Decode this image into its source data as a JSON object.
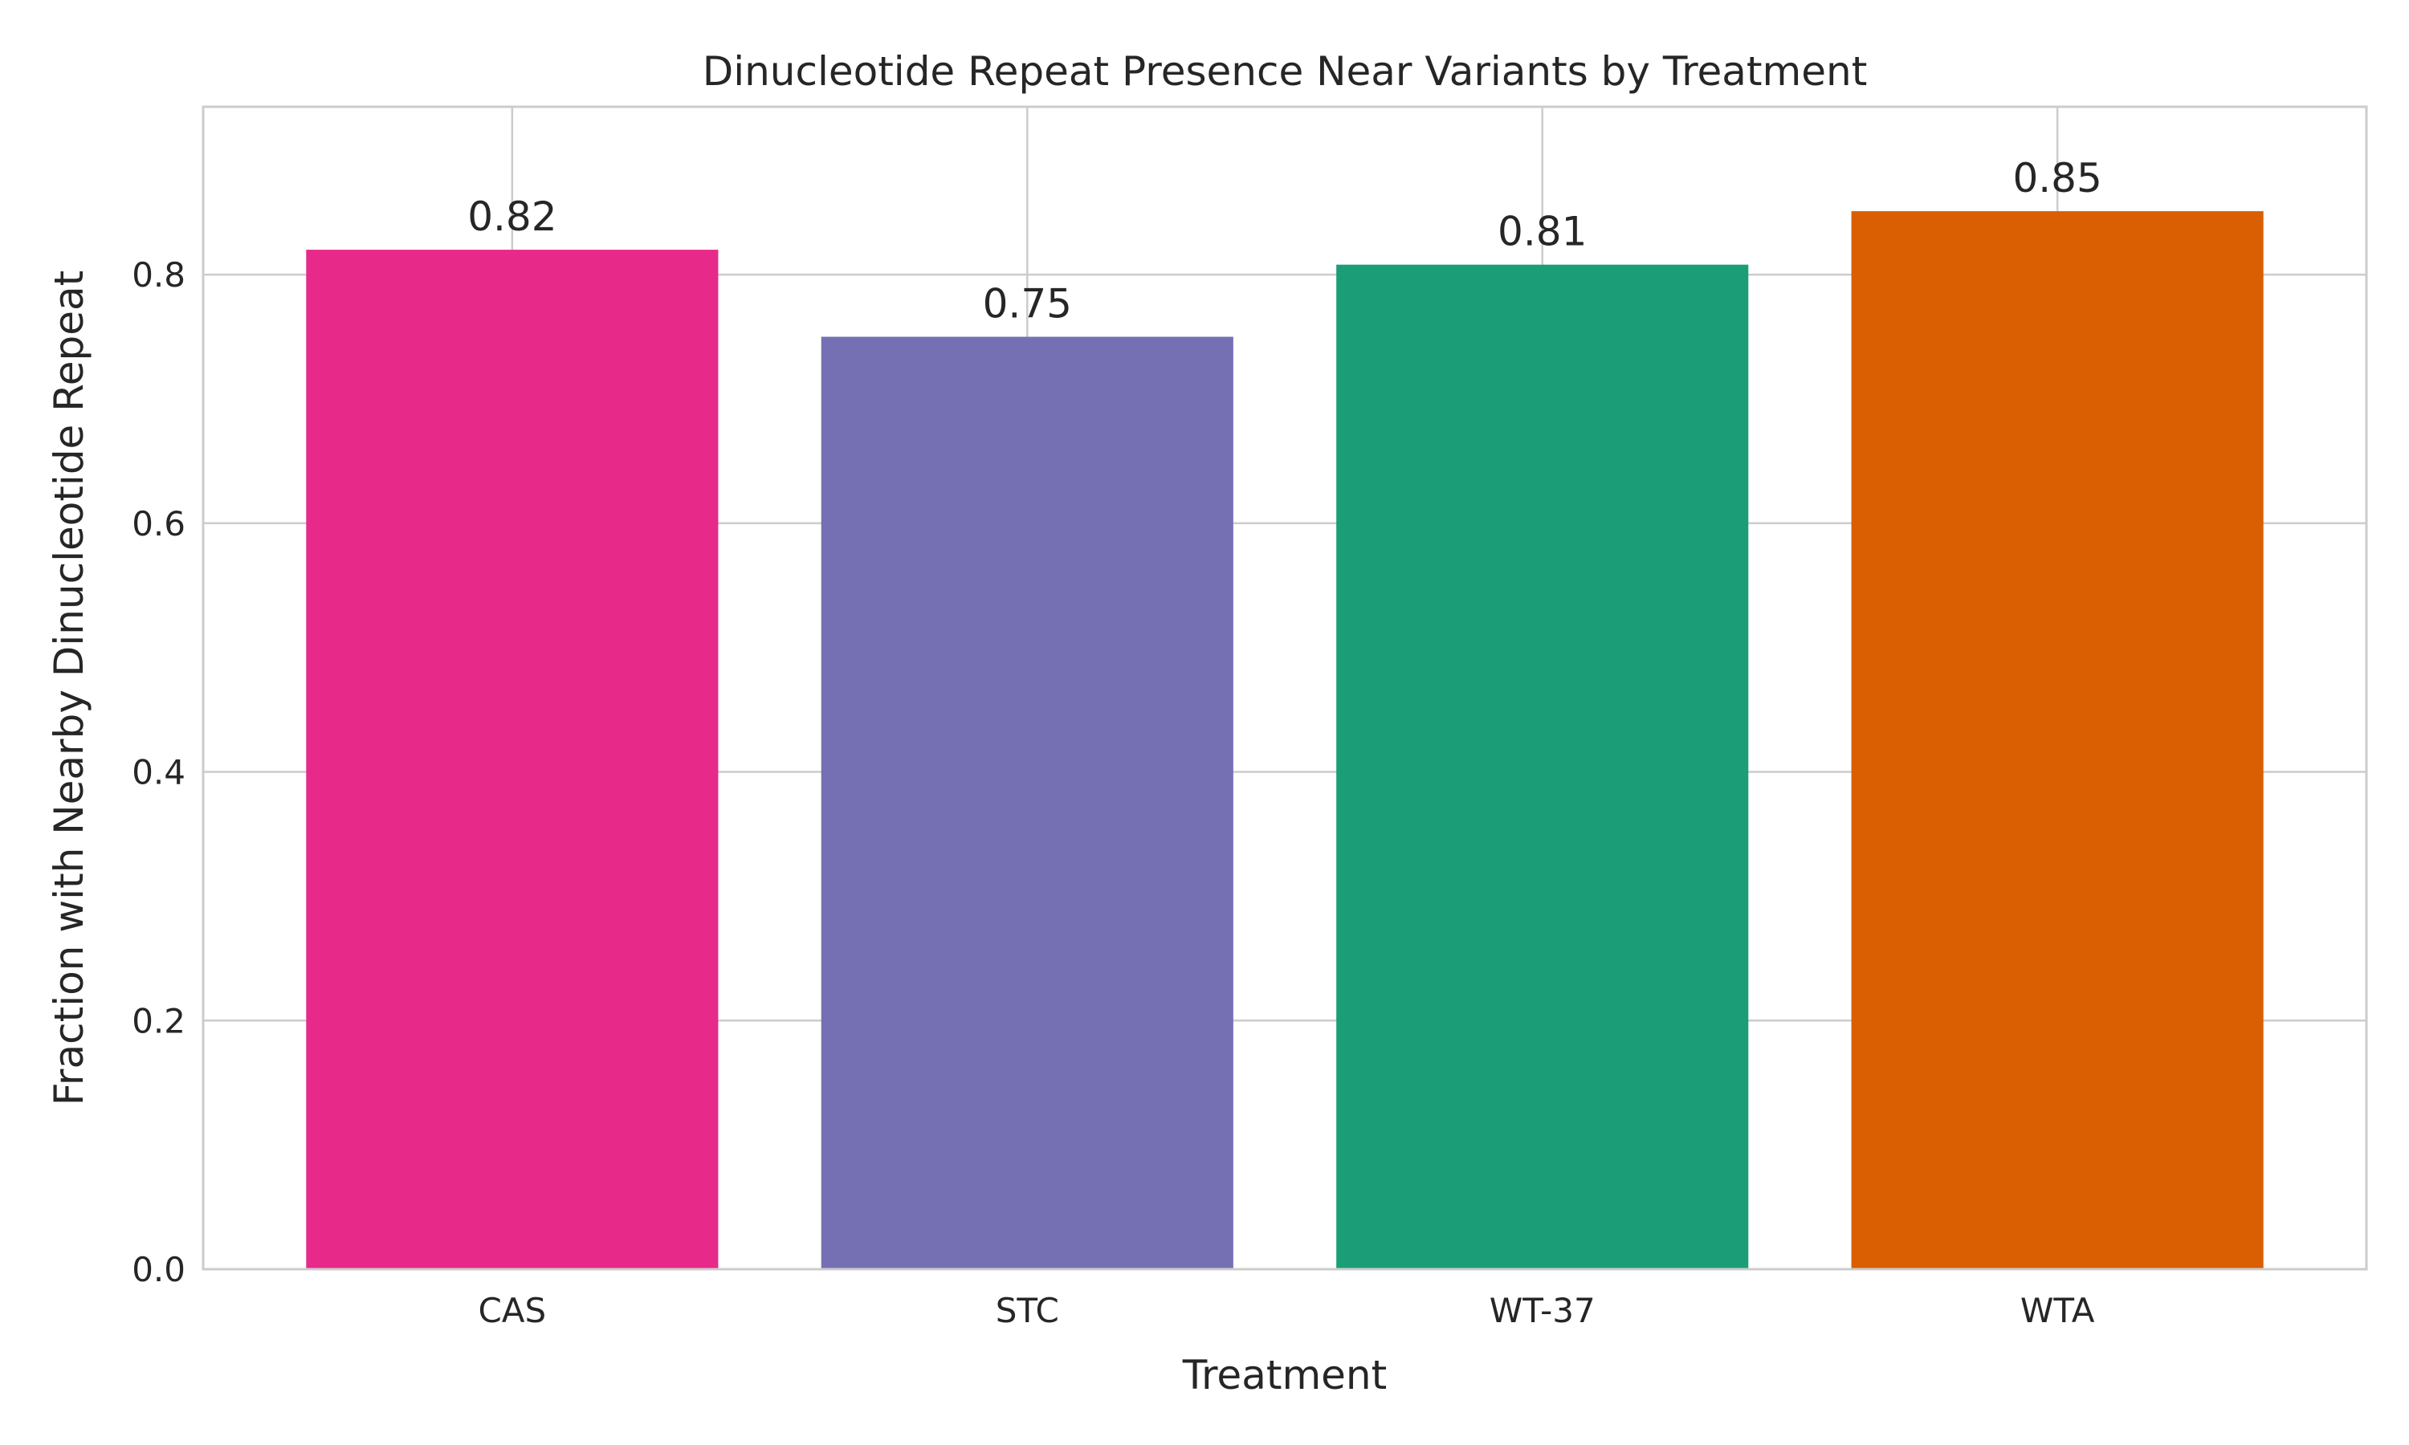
{
  "chart_data": {
    "type": "bar",
    "title": "Dinucleotide Repeat Presence Near Variants by Treatment",
    "xlabel": "Treatment",
    "ylabel": "Fraction with Nearby Dinucleotide Repeat",
    "categories": [
      "CAS",
      "STC",
      "WT-37",
      "WTA"
    ],
    "values": [
      0.82,
      0.75,
      0.808,
      0.851
    ],
    "data_labels": [
      "0.82",
      "0.75",
      "0.81",
      "0.85"
    ],
    "colors": [
      "#e7298a",
      "#7570b3",
      "#1b9e77",
      "#d95f02"
    ],
    "ylim": [
      0,
      0.935
    ],
    "yticks": [
      0.0,
      0.2,
      0.4,
      0.6,
      0.8
    ],
    "ytick_labels": [
      "0.0",
      "0.2",
      "0.4",
      "0.6",
      "0.8"
    ],
    "grid": true,
    "legend": "none"
  }
}
